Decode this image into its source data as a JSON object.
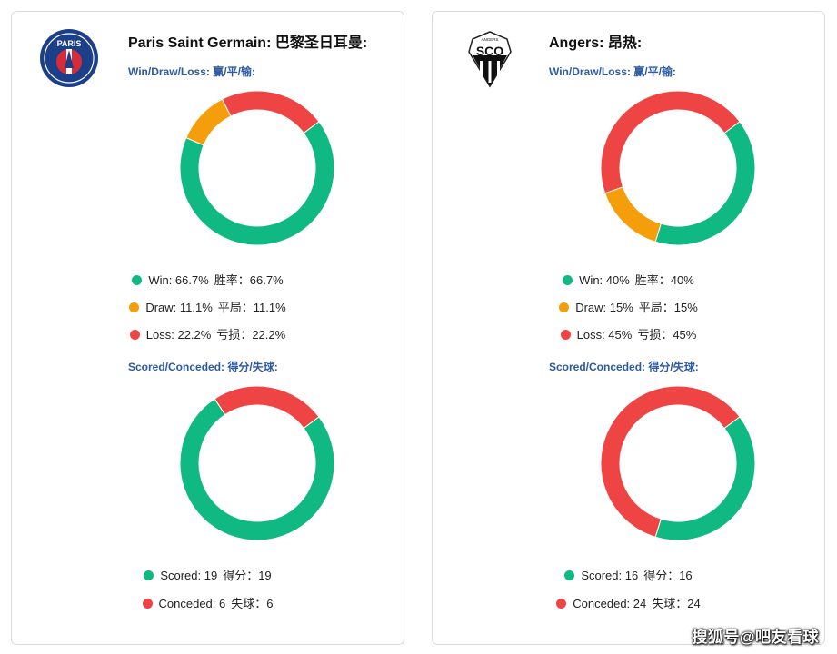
{
  "colors": {
    "win": "#10b981",
    "draw": "#f59e0b",
    "loss": "#ef4444",
    "scored": "#10b981",
    "conceded": "#ef4444"
  },
  "labels": {
    "wdl": "Win/Draw/Loss:  赢/平/输:",
    "sc": "Scored/Conceded:  得分/失球:"
  },
  "teams": {
    "left": {
      "title": "Paris Saint Germain:  巴黎圣日耳曼:",
      "logo_text": "PARIS",
      "wdl": {
        "win": {
          "label": "Win: 66.7%",
          "cn": "胜率：66.7%"
        },
        "draw": {
          "label": "Draw: 11.1%",
          "cn": "平局：11.1%"
        },
        "loss": {
          "label": "Loss: 22.2%",
          "cn": "亏损：22.2%"
        }
      },
      "sc": {
        "scored": {
          "label": "Scored: 19",
          "cn": "得分：19"
        },
        "conceded": {
          "label": "Conceded: 6",
          "cn": "失球：6"
        }
      }
    },
    "right": {
      "title": "Angers:  昂热:",
      "logo_text": "SCO",
      "logo_small": "ANGERS",
      "wdl": {
        "win": {
          "label": "Win: 40%",
          "cn": "胜率：40%"
        },
        "draw": {
          "label": "Draw: 15%",
          "cn": "平局：15%"
        },
        "loss": {
          "label": "Loss: 45%",
          "cn": "亏损：45%"
        }
      },
      "sc": {
        "scored": {
          "label": "Scored: 16",
          "cn": "得分：16"
        },
        "conceded": {
          "label": "Conceded: 24",
          "cn": "失球：24"
        }
      }
    }
  },
  "watermark": "搜狐号@吧友看球",
  "chart_data": [
    {
      "type": "pie",
      "chart": "psg-win-draw-loss",
      "categories": [
        "Win",
        "Draw",
        "Loss"
      ],
      "values": [
        66.7,
        11.1,
        22.2
      ],
      "colors": [
        "#10b981",
        "#f59e0b",
        "#ef4444"
      ]
    },
    {
      "type": "pie",
      "chart": "psg-scored-conceded",
      "categories": [
        "Scored",
        "Conceded"
      ],
      "values": [
        19,
        6
      ],
      "colors": [
        "#10b981",
        "#ef4444"
      ]
    },
    {
      "type": "pie",
      "chart": "angers-win-draw-loss",
      "categories": [
        "Win",
        "Draw",
        "Loss"
      ],
      "values": [
        40,
        15,
        45
      ],
      "colors": [
        "#10b981",
        "#f59e0b",
        "#ef4444"
      ]
    },
    {
      "type": "pie",
      "chart": "angers-scored-conceded",
      "categories": [
        "Scored",
        "Conceded"
      ],
      "values": [
        16,
        24
      ],
      "colors": [
        "#10b981",
        "#ef4444"
      ]
    }
  ]
}
